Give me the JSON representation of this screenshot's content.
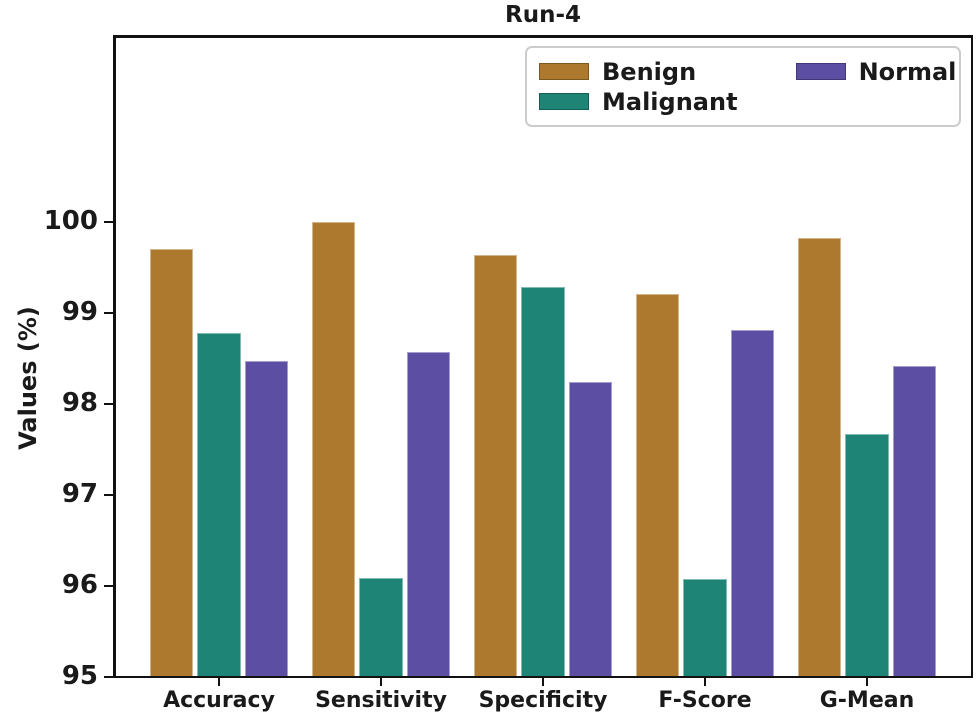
{
  "figure": {
    "title": "Run-4",
    "ylabel": "Values (%)"
  },
  "chart_data": {
    "type": "bar",
    "title": "Run-4",
    "xlabel": "",
    "ylabel": "Values (%)",
    "categories": [
      "Accuracy",
      "Sensitivity",
      "Specificity",
      "F-Score",
      "G-Mean"
    ],
    "series": [
      {
        "name": "Benign",
        "color": "#ac792e",
        "edge_color": "#7c591f",
        "values": [
          99.7,
          100.0,
          99.64,
          99.21,
          99.82
        ]
      },
      {
        "name": "Malignant",
        "color": "#1e8475",
        "edge_color": "#135e54",
        "values": [
          98.78,
          96.09,
          99.29,
          96.08,
          97.67
        ]
      },
      {
        "name": "Normal",
        "color": "#5c4ea3",
        "edge_color": "#413677",
        "values": [
          98.47,
          98.57,
          98.24,
          98.81,
          98.42
        ]
      }
    ],
    "ylim": [
      95,
      102.1
    ],
    "yticks": [
      95,
      96,
      97,
      98,
      99,
      100
    ],
    "grid": false,
    "legend_position": "upper right, 2 columns",
    "axis_color": "#111111",
    "background": "#ffffff"
  }
}
